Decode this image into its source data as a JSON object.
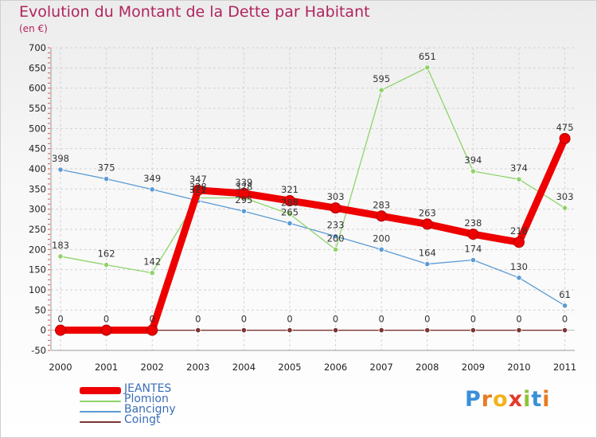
{
  "title": "Evolution du Montant de la Dette par Habitant",
  "subtitle": "(en €)",
  "logo": {
    "text": "Proxiti",
    "letters": [
      "P",
      "r",
      "o",
      "x",
      "i",
      "t",
      "i"
    ],
    "colors": [
      "#3a8fd8",
      "#e77b22",
      "#f2b21c",
      "#e23a2a",
      "#8fc33a",
      "#3a8fd8",
      "#e77b22"
    ]
  },
  "chart_data": {
    "type": "line",
    "x": [
      "2000",
      "2001",
      "2002",
      "2003",
      "2004",
      "2005",
      "2006",
      "2007",
      "2008",
      "2009",
      "2010",
      "2011"
    ],
    "ylim": [
      -50,
      700
    ],
    "yticks": [
      -50,
      0,
      50,
      100,
      150,
      200,
      250,
      300,
      350,
      400,
      450,
      500,
      550,
      600,
      650,
      700
    ],
    "grid": true,
    "legend_position": "bottom-left",
    "series": [
      {
        "name": "Coingt",
        "color": "#7a3535",
        "values": [
          0,
          0,
          0,
          0,
          0,
          0,
          0,
          0,
          0,
          0,
          0,
          0
        ],
        "labels": [
          "",
          "",
          "",
          "0",
          "0",
          "0",
          "0",
          "0",
          "0",
          "0",
          "0",
          "0"
        ]
      },
      {
        "name": "Bancigny",
        "color": "#5b9bd5",
        "values": [
          398,
          375,
          349,
          321,
          295,
          265,
          233,
          200,
          164,
          174,
          130,
          61
        ],
        "labels": [
          "398",
          "375",
          "349",
          "321",
          "295",
          "265",
          "233",
          "200",
          "164",
          "174",
          "130",
          "61"
        ]
      },
      {
        "name": "Plomion",
        "color": "#8fd36a",
        "values": [
          183,
          162,
          142,
          328,
          328,
          288,
          200,
          595,
          651,
          394,
          374,
          303
        ],
        "labels": [
          "183",
          "162",
          "142",
          "328",
          "328",
          "288",
          "200",
          "595",
          "651",
          "394",
          "374",
          "303"
        ]
      },
      {
        "name": "JEANTES",
        "color": "#ee0000",
        "values": [
          0,
          0,
          0,
          347,
          339,
          321,
          303,
          283,
          263,
          238,
          218,
          475
        ],
        "labels": [
          "0",
          "0",
          "0",
          "347",
          "339",
          "321",
          "303",
          "283",
          "263",
          "238",
          "218",
          "475"
        ]
      }
    ]
  }
}
